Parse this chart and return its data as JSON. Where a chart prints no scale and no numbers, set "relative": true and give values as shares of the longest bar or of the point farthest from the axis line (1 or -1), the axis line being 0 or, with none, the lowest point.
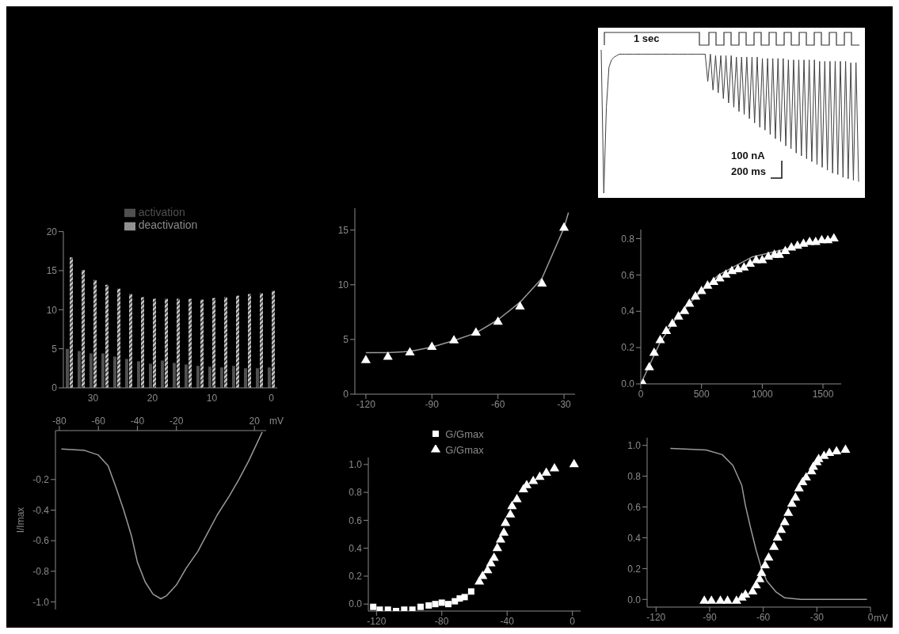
{
  "chart_data": [
    {
      "type": "line",
      "relative": true,
      "tick_labels": false,
      "annotations": [
        "1 sec",
        "100 nA",
        "200 ms"
      ],
      "categories": [
        null,
        null,
        null,
        null,
        null,
        null,
        null,
        null,
        null,
        null,
        null,
        null,
        null,
        null,
        null,
        null,
        null,
        null,
        null,
        null,
        null,
        null,
        null,
        null,
        null,
        null,
        null,
        null,
        null,
        null,
        null,
        null,
        null,
        null,
        null,
        null,
        null,
        null,
        null,
        null,
        null,
        null,
        null,
        null,
        null,
        null,
        null,
        null,
        null,
        null,
        null,
        null,
        null,
        null,
        null,
        null,
        null,
        null,
        null,
        null,
        null,
        null,
        null,
        null,
        null,
        null,
        null,
        null,
        null,
        null,
        null,
        null,
        null,
        null,
        null,
        null,
        null,
        null,
        null,
        null,
        null,
        null,
        null,
        null,
        null,
        null,
        null,
        null,
        null,
        null,
        null,
        null,
        null,
        null,
        null,
        null,
        null,
        null,
        null,
        null
      ],
      "series": [
        {
          "color": "#404040",
          "values": [
            1.0,
            0.0,
            0.6,
            0.88,
            0.93,
            0.95,
            0.96,
            0.97,
            0.97,
            0.97,
            0.97,
            0.97,
            0.97,
            0.97,
            0.97,
            0.97,
            0.97,
            0.97,
            0.97,
            0.97,
            0.97,
            0.97,
            0.97,
            0.97,
            0.97,
            0.97,
            0.97,
            0.97,
            0.97,
            0.97,
            0.97,
            0.97,
            0.97,
            0.97,
            0.97,
            0.97,
            0.97,
            0.97,
            0.97,
            0.97,
            0.97,
            0.78,
            0.97,
            0.72,
            0.96,
            0.7,
            0.96,
            0.66,
            0.96,
            0.63,
            0.96,
            0.6,
            0.95,
            0.57,
            0.95,
            0.55,
            0.95,
            0.52,
            0.95,
            0.49,
            0.95,
            0.46,
            0.94,
            0.44,
            0.94,
            0.41,
            0.94,
            0.38,
            0.94,
            0.36,
            0.94,
            0.33,
            0.93,
            0.31,
            0.93,
            0.28,
            0.93,
            0.26,
            0.93,
            0.24,
            0.93,
            0.22,
            0.93,
            0.2,
            0.92,
            0.18,
            0.92,
            0.16,
            0.92,
            0.14,
            0.92,
            0.13,
            0.92,
            0.11,
            0.92,
            0.1,
            0.91,
            0.09,
            0.91,
            0.08
          ]
        }
      ]
    },
    {
      "type": "bar",
      "categories": [
        null,
        null,
        "30",
        null,
        null,
        null,
        null,
        "20",
        null,
        null,
        null,
        null,
        "10",
        null,
        null,
        null,
        null,
        "0"
      ],
      "ylim": [
        0,
        20
      ],
      "yticks": [
        0,
        5,
        10,
        15,
        20
      ],
      "legend": "top",
      "series": [
        {
          "name": "activation",
          "color": "#505050",
          "values": [
            5.0,
            4.7,
            4.4,
            4.4,
            4.0,
            3.7,
            3.4,
            3.1,
            3.5,
            3.2,
            3.0,
            2.8,
            2.7,
            2.6,
            2.8,
            2.5,
            2.5,
            2.6
          ]
        },
        {
          "name": "deactivation",
          "color": "#c8c8c8",
          "values": [
            16.7,
            15.1,
            13.8,
            13.2,
            12.7,
            12.0,
            11.6,
            11.4,
            11.4,
            11.4,
            11.4,
            11.3,
            11.5,
            11.6,
            11.8,
            12.0,
            12.1,
            12.4
          ]
        }
      ]
    },
    {
      "type": "scatter",
      "xlim": [
        -125,
        -25
      ],
      "xticks": [
        -120,
        -90,
        -60,
        -30
      ],
      "ylim": [
        0,
        17
      ],
      "yticks": [
        0,
        5,
        10,
        15
      ],
      "series": [
        {
          "type": "scatter",
          "color": "#ffffff",
          "marker": "triangle",
          "x": [
            -120,
            -110,
            -100,
            -90,
            -80,
            -70,
            -60,
            -50,
            -40,
            -30
          ],
          "values": [
            3.1,
            3.4,
            3.8,
            4.3,
            4.9,
            5.6,
            6.6,
            8.0,
            10.1,
            15.2
          ]
        },
        {
          "type": "line",
          "color": "#9a9a9a",
          "x": [
            -120,
            -110,
            -100,
            -90,
            -80,
            -70,
            -60,
            -50,
            -40,
            -30,
            -28
          ],
          "values": [
            3.8,
            3.8,
            3.9,
            4.3,
            4.9,
            5.6,
            6.8,
            8.4,
            10.6,
            15.2,
            16.6
          ]
        }
      ]
    },
    {
      "type": "scatter",
      "xlim": [
        0,
        1650
      ],
      "xticks": [
        0,
        500,
        1000,
        1500
      ],
      "ylim": [
        0,
        0.85
      ],
      "yticks": [
        {
          "value": 0,
          "label": "0.0"
        },
        0.2,
        0.4,
        0.6,
        0.8
      ],
      "series": [
        {
          "type": "scatter",
          "color": "#ffffff",
          "marker": "triangle",
          "x": [
            20,
            70,
            110,
            160,
            210,
            260,
            310,
            360,
            400,
            450,
            500,
            550,
            600,
            650,
            700,
            750,
            800,
            850,
            900,
            950,
            1000,
            1050,
            1100,
            1140,
            1190,
            1240,
            1290,
            1340,
            1390,
            1440,
            1490,
            1540,
            1590
          ],
          "values": [
            0.0,
            0.09,
            0.17,
            0.24,
            0.29,
            0.33,
            0.37,
            0.4,
            0.44,
            0.48,
            0.51,
            0.54,
            0.56,
            0.58,
            0.6,
            0.62,
            0.63,
            0.64,
            0.66,
            0.68,
            0.68,
            0.7,
            0.71,
            0.71,
            0.73,
            0.75,
            0.76,
            0.77,
            0.78,
            0.78,
            0.79,
            0.79,
            0.8
          ]
        },
        {
          "type": "line",
          "color": "#9a9a9a",
          "x": [
            0,
            160,
            310,
            500,
            640,
            920,
            1240,
            1570
          ],
          "values": [
            0.0,
            0.23,
            0.38,
            0.51,
            0.6,
            0.7,
            0.75,
            0.8
          ]
        }
      ]
    },
    {
      "type": "line",
      "xlabel": "mV",
      "ylabel": "I/Imax",
      "xlim": [
        -82,
        26
      ],
      "xticks": [
        -80,
        -60,
        -40,
        -20,
        20
      ],
      "ylim": [
        -1.05,
        0.12
      ],
      "yticks": [
        -0.2,
        -0.4,
        -0.6,
        -0.8,
        {
          "value": -1,
          "label": "-1.0"
        }
      ],
      "series": [
        {
          "type": "line",
          "color": "#9a9a9a",
          "x": [
            -79,
            -67,
            -60,
            -55,
            -51,
            -47,
            -43,
            -40,
            -36,
            -32,
            -28,
            -25,
            -20,
            -15,
            -9,
            -4,
            1,
            7,
            12,
            17,
            24
          ],
          "values": [
            0.0,
            -0.01,
            -0.04,
            -0.11,
            -0.25,
            -0.4,
            -0.57,
            -0.74,
            -0.87,
            -0.95,
            -0.98,
            -0.96,
            -0.89,
            -0.78,
            -0.67,
            -0.55,
            -0.43,
            -0.31,
            -0.2,
            -0.08,
            0.11
          ]
        }
      ]
    },
    {
      "type": "scatter",
      "xlim": [
        -125,
        5
      ],
      "xticks": [
        -120,
        -80,
        -40,
        0
      ],
      "ylim": [
        -0.05,
        1.05
      ],
      "yticks": [
        {
          "value": 0,
          "label": "0.0"
        },
        0.2,
        0.4,
        0.6,
        0.8,
        {
          "value": 1,
          "label": "1.0"
        }
      ],
      "legend": "top",
      "series": [
        {
          "name": "G/Gmax",
          "type": "scatter",
          "color": "#ffffff",
          "marker": "square",
          "x": [
            -122,
            -118,
            -113,
            -108,
            -103,
            -98,
            -93,
            -88,
            -84,
            -80,
            -76,
            -72,
            -69,
            -66,
            -62
          ],
          "values": [
            -0.02,
            -0.04,
            -0.04,
            -0.05,
            -0.04,
            -0.04,
            -0.02,
            -0.01,
            0.0,
            0.01,
            0.0,
            0.02,
            0.04,
            0.05,
            0.09
          ]
        },
        {
          "name": "G/Gmax",
          "type": "scatter",
          "color": "#ffffff",
          "marker": "triangle",
          "x": [
            -57,
            -55,
            -52,
            -50,
            -48,
            -46,
            -44,
            -42,
            -41,
            -38,
            -37,
            -34,
            -30,
            -28,
            -24,
            -20,
            -16,
            -11,
            1
          ],
          "values": [
            0.16,
            0.2,
            0.24,
            0.29,
            0.33,
            0.4,
            0.46,
            0.51,
            0.58,
            0.64,
            0.7,
            0.75,
            0.82,
            0.85,
            0.88,
            0.91,
            0.94,
            0.97,
            1.0
          ]
        }
      ]
    },
    {
      "type": "scatter",
      "xlabel": "mV",
      "xlim": [
        -125,
        0
      ],
      "xticks": [
        -120,
        -90,
        -60,
        -30,
        0
      ],
      "ylim": [
        -0.05,
        1.05
      ],
      "yticks": [
        {
          "value": 0,
          "label": "0.0"
        },
        0.2,
        0.4,
        0.6,
        0.8,
        {
          "value": 1,
          "label": "1.0"
        }
      ],
      "series": [
        {
          "type": "line",
          "color": "#9a9a9a",
          "x": [
            -112,
            -92,
            -83,
            -77,
            -72,
            -70,
            -67,
            -64,
            -61,
            -58,
            -53,
            -48,
            -39,
            -2
          ],
          "values": [
            0.98,
            0.97,
            0.94,
            0.87,
            0.74,
            0.61,
            0.46,
            0.32,
            0.2,
            0.12,
            0.05,
            0.01,
            0.0,
            0.0
          ]
        },
        {
          "type": "scatter",
          "color": "#ffffff",
          "marker": "triangle",
          "x": [
            -93,
            -89,
            -84,
            -80,
            -75,
            -72,
            -70,
            -66,
            -64,
            -62,
            -61,
            -59,
            -57,
            -54,
            -52,
            -50,
            -48,
            -46,
            -44,
            -42,
            -40,
            -38,
            -36,
            -33,
            -32,
            -30,
            -29,
            -26,
            -23,
            -19,
            -14
          ],
          "values": [
            -0.01,
            -0.01,
            -0.01,
            -0.01,
            -0.01,
            0.01,
            0.03,
            0.05,
            0.09,
            0.13,
            0.17,
            0.22,
            0.27,
            0.34,
            0.4,
            0.45,
            0.5,
            0.56,
            0.62,
            0.66,
            0.72,
            0.76,
            0.79,
            0.83,
            0.86,
            0.89,
            0.91,
            0.93,
            0.95,
            0.96,
            0.97
          ]
        }
      ]
    }
  ]
}
